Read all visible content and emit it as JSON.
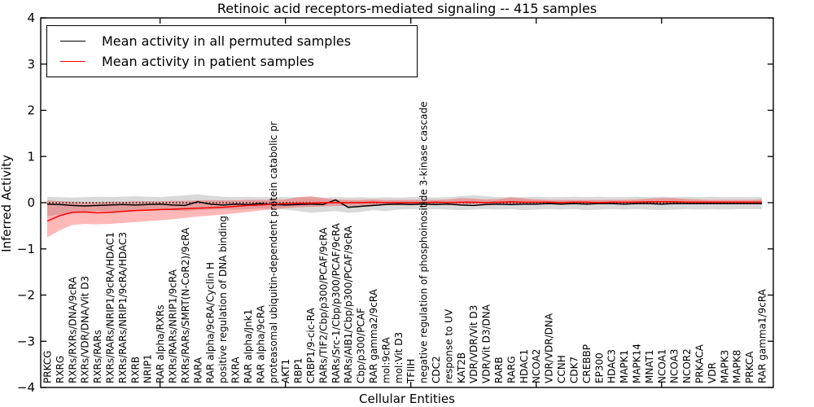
{
  "chart_data": {
    "type": "line",
    "title": "Retinoic acid receptors-mediated signaling -- 415 samples",
    "xlabel": "Cellular Entities",
    "ylabel": "Inferred Activity",
    "ylim": [
      -4,
      4
    ],
    "ytick_labels": [
      "−4",
      "−3",
      "−2",
      "−1",
      "0",
      "1",
      "2",
      "3",
      "4"
    ],
    "ytick_values": [
      -4,
      -3,
      -2,
      -1,
      0,
      1,
      2,
      3,
      4
    ],
    "grid": false,
    "legend_position": "upper-left",
    "zero_reference_line": 0,
    "categories": [
      "PRKCG",
      "RXRG",
      "RXRs/RXRs/DNA/9cRA",
      "RXRs/VDR/DNA/Vit D3",
      "RXRs/RARs",
      "RXRs/RARs/NRIP1/9cRA/HDAC1",
      "RXRs/RARs/NRIP1/9cRA/HDAC3",
      "RXRB",
      "NRIP1",
      "RAR alpha/RXRs",
      "RXRs/RARs/NRIP1/9cRA",
      "RXRs/RARs/SMRT(N-CoR2)/9cRA",
      "RARA",
      "RAR alpha/9cRA/Cyclin H",
      "positive regulation of DNA binding",
      "RXRA",
      "RAR alpha/Jnk1",
      "RAR alpha/9cRA",
      "proteasomal ubiquitin-dependent protein catabolic pr",
      "AKT1",
      "RBP1",
      "CRBP1/9-cic-RA",
      "RARs/TIF2/Cbp/p300/PCAF/9cRA",
      "RARs/Src-1/Cbp/p300/PCAF/9cRA",
      "RARs/AIB1/Cbp/p300/PCAF/9cRA",
      "Cbp/p300/PCAF",
      "RAR gamma2/9cRA",
      "mol:9cRA",
      "mol:Vit D3",
      "TFIIH",
      "negative regulation of phosphoinositide 3-kinase cascade",
      "CDC2",
      "response to UV",
      "KAT2B",
      "VDR/VDR/Vit D3",
      "VDR/Vit D3/DNA",
      "RARB",
      "RARG",
      "HDAC1",
      "NCOA2",
      "VDR/VDR/DNA",
      "CCNH",
      "CDK7",
      "CREBBP",
      "EP300",
      "HDAC3",
      "MAPK1",
      "MAPK14",
      "MNAT1",
      "NCOA1",
      "NCOA3",
      "NCOR2",
      "PRKACA",
      "VDR",
      "MAPK3",
      "MAPK8",
      "PRKCA",
      "RAR gamma1/9cRA"
    ],
    "series": [
      {
        "key": "permuted",
        "name": "Mean activity in all permuted samples",
        "color": "#000000",
        "values": [
          -0.03,
          -0.04,
          -0.06,
          -0.07,
          -0.06,
          -0.05,
          -0.04,
          -0.05,
          -0.04,
          -0.03,
          -0.05,
          -0.06,
          0.02,
          -0.03,
          -0.05,
          -0.03,
          -0.04,
          -0.02,
          -0.04,
          -0.05,
          -0.04,
          -0.03,
          -0.04,
          0.06,
          -0.1,
          -0.08,
          -0.06,
          -0.04,
          -0.03,
          -0.04,
          -0.03,
          -0.04,
          -0.03,
          -0.05,
          -0.06,
          -0.04,
          -0.03,
          -0.04,
          -0.03,
          -0.03,
          -0.02,
          -0.03,
          -0.02,
          -0.03,
          -0.02,
          -0.02,
          -0.03,
          -0.02,
          -0.02,
          -0.03,
          -0.02,
          -0.02,
          -0.02,
          -0.02,
          -0.02,
          -0.02,
          -0.02,
          -0.02
        ],
        "band": {
          "color": "rgba(128,128,128,0.30)",
          "upper": [
            0.13,
            0.12,
            0.11,
            0.12,
            0.13,
            0.12,
            0.13,
            0.14,
            0.13,
            0.12,
            0.14,
            0.16,
            0.18,
            0.15,
            0.13,
            0.12,
            0.13,
            0.12,
            0.13,
            0.12,
            0.12,
            0.12,
            0.11,
            0.12,
            0.11,
            0.12,
            0.11,
            0.12,
            0.11,
            0.12,
            0.12,
            0.11,
            0.12,
            0.14,
            0.16,
            0.14,
            0.12,
            0.12,
            0.12,
            0.13,
            0.12,
            0.12,
            0.13,
            0.12,
            0.13,
            0.12,
            0.12,
            0.13,
            0.12,
            0.13,
            0.12,
            0.13,
            0.12,
            0.13,
            0.12,
            0.12,
            0.12,
            0.12
          ],
          "lower": [
            -0.3,
            -0.25,
            -0.22,
            -0.2,
            -0.18,
            -0.2,
            -0.18,
            -0.17,
            -0.16,
            -0.15,
            -0.17,
            -0.18,
            -0.16,
            -0.15,
            -0.14,
            -0.15,
            -0.14,
            -0.13,
            -0.14,
            -0.15,
            -0.18,
            -0.22,
            -0.2,
            -0.18,
            -0.22,
            -0.2,
            -0.16,
            -0.18,
            -0.15,
            -0.14,
            -0.15,
            -0.14,
            -0.15,
            -0.16,
            -0.15,
            -0.14,
            -0.15,
            -0.14,
            -0.16,
            -0.15,
            -0.14,
            -0.15,
            -0.14,
            -0.16,
            -0.15,
            -0.14,
            -0.15,
            -0.14,
            -0.15,
            -0.16,
            -0.15,
            -0.14,
            -0.15,
            -0.14,
            -0.15,
            -0.14,
            -0.14,
            -0.14
          ]
        }
      },
      {
        "key": "patient",
        "name": "Mean activity in patient samples",
        "color": "#ff0000",
        "values": [
          -0.4,
          -0.28,
          -0.21,
          -0.2,
          -0.22,
          -0.21,
          -0.19,
          -0.17,
          -0.16,
          -0.15,
          -0.14,
          -0.13,
          -0.12,
          -0.11,
          -0.1,
          -0.08,
          -0.06,
          -0.05,
          -0.03,
          -0.02,
          -0.01,
          -0.01,
          0.0,
          0.0,
          0.0,
          0.0,
          0.01,
          0.0,
          0.0,
          0.0,
          0.0,
          0.01,
          0.0,
          0.01,
          0.01,
          0.0,
          0.01,
          0.02,
          0.01,
          0.01,
          0.01,
          0.0,
          0.01,
          0.01,
          0.0,
          0.01,
          0.01,
          0.01,
          0.02,
          0.02,
          0.02,
          0.01,
          0.01,
          0.01,
          0.01,
          0.01,
          0.01,
          0.01
        ],
        "band": {
          "color": "rgba(255,0,0,0.28)",
          "upper": [
            0.05,
            0.03,
            0.02,
            0.01,
            0.01,
            0.02,
            0.02,
            0.03,
            0.03,
            0.03,
            0.04,
            0.04,
            0.05,
            0.05,
            0.05,
            0.05,
            0.06,
            0.06,
            0.06,
            0.07,
            0.12,
            0.14,
            0.1,
            0.07,
            0.06,
            0.06,
            0.07,
            0.06,
            0.06,
            0.06,
            0.06,
            0.06,
            0.07,
            0.1,
            0.09,
            0.07,
            0.08,
            0.12,
            0.09,
            0.07,
            0.06,
            0.06,
            0.06,
            0.06,
            0.06,
            0.06,
            0.06,
            0.07,
            0.09,
            0.1,
            0.1,
            0.08,
            0.07,
            0.06,
            0.06,
            0.06,
            0.06,
            0.07
          ],
          "lower": [
            -0.75,
            -0.6,
            -0.48,
            -0.46,
            -0.47,
            -0.46,
            -0.44,
            -0.42,
            -0.4,
            -0.38,
            -0.36,
            -0.33,
            -0.3,
            -0.28,
            -0.26,
            -0.23,
            -0.2,
            -0.17,
            -0.14,
            -0.12,
            -0.1,
            -0.09,
            -0.08,
            -0.07,
            -0.07,
            -0.06,
            -0.06,
            -0.05,
            -0.05,
            -0.04,
            -0.04,
            -0.04,
            -0.04,
            -0.04,
            -0.03,
            -0.03,
            -0.03,
            -0.03,
            -0.03,
            -0.03,
            -0.02,
            -0.02,
            -0.02,
            -0.02,
            -0.02,
            -0.02,
            -0.02,
            -0.02,
            -0.02,
            -0.02,
            -0.02,
            -0.02,
            -0.01,
            -0.01,
            -0.01,
            -0.01,
            -0.01,
            -0.02
          ]
        }
      }
    ]
  },
  "legend": {
    "items": [
      {
        "label": "Mean activity in all permuted samples",
        "color": "#000000"
      },
      {
        "label": "Mean activity in patient samples",
        "color": "#ff0000"
      }
    ]
  }
}
